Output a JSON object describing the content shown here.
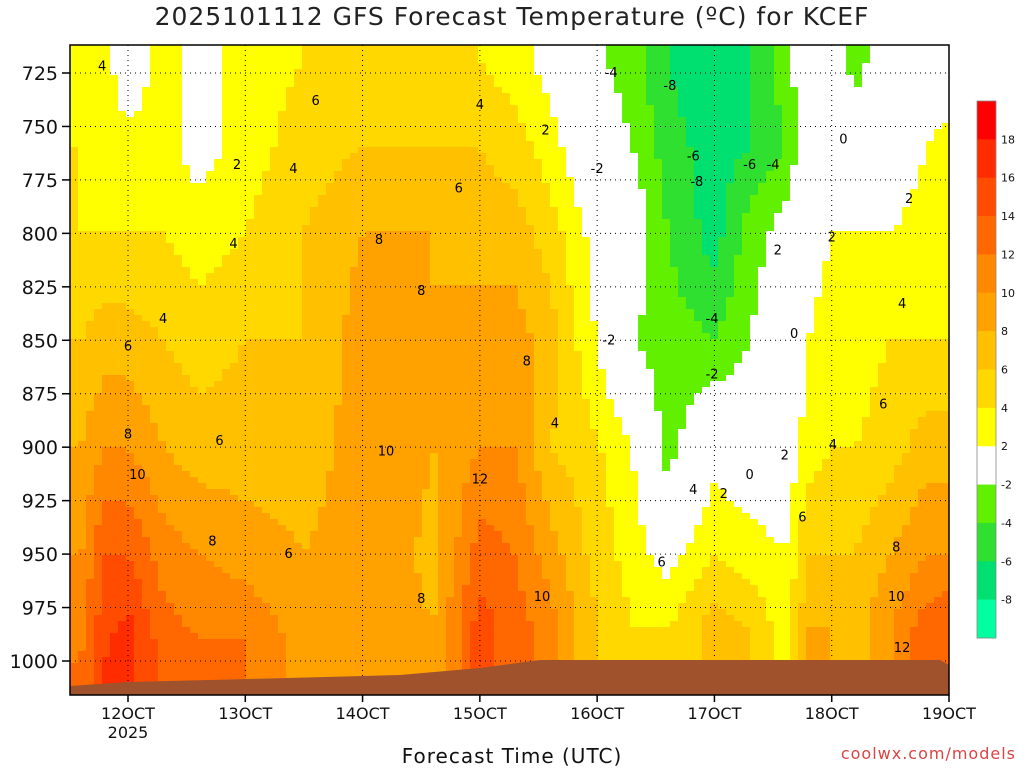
{
  "title": "2025101112 GFS Forecast Temperature (ºC) for KCEF",
  "xlabel": "Forecast Time (UTC)",
  "credit": "coolwx.com/models",
  "chart_data": {
    "type": "heatmap",
    "title": "2025101112 GFS Forecast Temperature (ºC) for KCEF",
    "xlabel": "Forecast Time (UTC)",
    "ylabel": "",
    "x_ticks": [
      "12OCT",
      "13OCT",
      "14OCT",
      "15OCT",
      "16OCT",
      "17OCT",
      "18OCT",
      "19OCT"
    ],
    "x_tick_values": [
      12,
      13,
      14,
      15,
      16,
      17,
      18,
      19
    ],
    "x_sub_label": "2025",
    "xlim": [
      11.6,
      19.0
    ],
    "y_ticks": [
      725,
      750,
      775,
      800,
      825,
      850,
      875,
      900,
      925,
      950,
      975,
      1000
    ],
    "ylim": [
      1015,
      711
    ],
    "y_inverted": true,
    "grid": true,
    "colorbar": {
      "levels": [
        -8,
        -6,
        -4,
        -2,
        2,
        4,
        6,
        8,
        10,
        12,
        14,
        16,
        18
      ],
      "tick_labels": [
        "18",
        "16",
        "14",
        "12",
        "10",
        "8",
        "6",
        "4",
        "2",
        "-2",
        "-4",
        "-6",
        "-8"
      ],
      "colors": [
        "#00ffa0",
        "#00e070",
        "#30e030",
        "#60f000",
        "#ffffff",
        "#ffff00",
        "#ffd800",
        "#ffc000",
        "#ffa200",
        "#ff8800",
        "#ff6800",
        "#ff4c00",
        "#ff2c00",
        "#ff0000"
      ]
    },
    "columns": [
      {
        "x": 11.6,
        "t": [
          [
            720,
            3
          ],
          [
            760,
            4
          ],
          [
            800,
            4
          ],
          [
            850,
            6
          ],
          [
            900,
            8
          ],
          [
            950,
            10
          ],
          [
            1000,
            12
          ]
        ]
      },
      {
        "x": 11.8,
        "t": [
          [
            720,
            3
          ],
          [
            760,
            3
          ],
          [
            800,
            4
          ],
          [
            850,
            7
          ],
          [
            900,
            10
          ],
          [
            950,
            14
          ],
          [
            1000,
            16
          ]
        ]
      },
      {
        "x": 12.0,
        "t": [
          [
            720,
            0
          ],
          [
            760,
            3
          ],
          [
            800,
            4
          ],
          [
            850,
            7
          ],
          [
            900,
            10
          ],
          [
            950,
            14
          ],
          [
            990,
            17
          ]
        ]
      },
      {
        "x": 12.3,
        "t": [
          [
            720,
            3
          ],
          [
            760,
            3
          ],
          [
            800,
            4
          ],
          [
            850,
            6
          ],
          [
            900,
            8
          ],
          [
            950,
            11
          ],
          [
            990,
            13
          ]
        ]
      },
      {
        "x": 12.6,
        "t": [
          [
            720,
            1
          ],
          [
            760,
            1
          ],
          [
            800,
            3
          ],
          [
            850,
            5
          ],
          [
            900,
            7
          ],
          [
            950,
            10
          ],
          [
            990,
            12
          ]
        ]
      },
      {
        "x": 13.0,
        "t": [
          [
            720,
            3
          ],
          [
            760,
            3
          ],
          [
            800,
            4
          ],
          [
            850,
            6
          ],
          [
            900,
            7
          ],
          [
            950,
            9
          ],
          [
            990,
            12
          ]
        ]
      },
      {
        "x": 13.5,
        "t": [
          [
            720,
            4
          ],
          [
            760,
            5
          ],
          [
            800,
            6
          ],
          [
            850,
            6
          ],
          [
            900,
            7
          ],
          [
            950,
            8
          ],
          [
            985,
            9
          ]
        ]
      },
      {
        "x": 14.0,
        "t": [
          [
            720,
            5
          ],
          [
            760,
            6
          ],
          [
            800,
            8
          ],
          [
            850,
            9
          ],
          [
            900,
            9
          ],
          [
            950,
            9
          ],
          [
            985,
            9
          ]
        ]
      },
      {
        "x": 14.3,
        "t": [
          [
            720,
            5
          ],
          [
            760,
            6
          ],
          [
            800,
            8
          ],
          [
            850,
            10
          ],
          [
            900,
            10
          ],
          [
            950,
            9
          ],
          [
            985,
            9
          ]
        ]
      },
      {
        "x": 14.6,
        "t": [
          [
            720,
            5
          ],
          [
            760,
            6
          ],
          [
            800,
            8
          ],
          [
            850,
            8
          ],
          [
            900,
            8
          ],
          [
            950,
            7
          ],
          [
            985,
            8
          ]
        ]
      },
      {
        "x": 15.0,
        "t": [
          [
            720,
            4
          ],
          [
            760,
            6
          ],
          [
            800,
            7
          ],
          [
            850,
            9
          ],
          [
            900,
            10
          ],
          [
            950,
            13
          ],
          [
            985,
            15
          ]
        ]
      },
      {
        "x": 15.3,
        "t": [
          [
            720,
            3
          ],
          [
            760,
            5
          ],
          [
            800,
            7
          ],
          [
            850,
            9
          ],
          [
            900,
            10
          ],
          [
            950,
            12
          ],
          [
            985,
            13
          ]
        ]
      },
      {
        "x": 15.6,
        "t": [
          [
            720,
            1
          ],
          [
            760,
            3
          ],
          [
            800,
            5
          ],
          [
            850,
            7
          ],
          [
            900,
            6
          ],
          [
            950,
            9
          ],
          [
            985,
            11
          ]
        ]
      },
      {
        "x": 15.9,
        "t": [
          [
            720,
            -1
          ],
          [
            760,
            0
          ],
          [
            800,
            2
          ],
          [
            850,
            3
          ],
          [
            900,
            5
          ],
          [
            950,
            6
          ],
          [
            985,
            7
          ]
        ]
      },
      {
        "x": 16.3,
        "t": [
          [
            720,
            -3
          ],
          [
            760,
            -2
          ],
          [
            800,
            0
          ],
          [
            850,
            -2
          ],
          [
            900,
            2
          ],
          [
            950,
            3
          ],
          [
            985,
            4
          ]
        ]
      },
      {
        "x": 16.6,
        "t": [
          [
            720,
            -6
          ],
          [
            760,
            -5
          ],
          [
            800,
            -4
          ],
          [
            850,
            -3
          ],
          [
            900,
            -3
          ],
          [
            950,
            1
          ],
          [
            985,
            4
          ]
        ]
      },
      {
        "x": 17.0,
        "t": [
          [
            720,
            -8
          ],
          [
            760,
            -7
          ],
          [
            800,
            -7
          ],
          [
            850,
            -4
          ],
          [
            900,
            1
          ],
          [
            950,
            4
          ],
          [
            985,
            7
          ]
        ]
      },
      {
        "x": 17.3,
        "t": [
          [
            720,
            -6
          ],
          [
            760,
            -6
          ],
          [
            800,
            -3
          ],
          [
            850,
            -2
          ],
          [
            900,
            0
          ],
          [
            950,
            3
          ],
          [
            985,
            6
          ]
        ]
      },
      {
        "x": 17.6,
        "t": [
          [
            720,
            -3
          ],
          [
            760,
            -4
          ],
          [
            800,
            -1
          ],
          [
            850,
            0
          ],
          [
            900,
            0
          ],
          [
            950,
            2
          ],
          [
            985,
            3
          ]
        ]
      },
      {
        "x": 17.8,
        "t": [
          [
            720,
            0
          ],
          [
            760,
            0
          ],
          [
            800,
            1
          ],
          [
            850,
            2
          ],
          [
            900,
            3
          ],
          [
            950,
            6
          ],
          [
            985,
            8
          ]
        ]
      },
      {
        "x": 18.0,
        "t": [
          [
            720,
            0
          ],
          [
            760,
            0
          ],
          [
            800,
            2
          ],
          [
            850,
            3
          ],
          [
            900,
            4
          ],
          [
            950,
            6
          ],
          [
            985,
            8
          ]
        ]
      },
      {
        "x": 18.2,
        "t": [
          [
            720,
            -3
          ],
          [
            760,
            0
          ],
          [
            800,
            2
          ],
          [
            850,
            3
          ],
          [
            900,
            4
          ],
          [
            950,
            6
          ],
          [
            985,
            7
          ]
        ]
      },
      {
        "x": 18.5,
        "t": [
          [
            720,
            0
          ],
          [
            760,
            0
          ],
          [
            800,
            2
          ],
          [
            850,
            4
          ],
          [
            900,
            5
          ],
          [
            950,
            8
          ],
          [
            985,
            10
          ]
        ]
      },
      {
        "x": 18.8,
        "t": [
          [
            720,
            0
          ],
          [
            760,
            2
          ],
          [
            800,
            3
          ],
          [
            850,
            4
          ],
          [
            900,
            7
          ],
          [
            950,
            10
          ],
          [
            985,
            13
          ]
        ]
      },
      {
        "x": 19.0,
        "t": [
          [
            720,
            0
          ],
          [
            760,
            3
          ],
          [
            800,
            3
          ],
          [
            850,
            4
          ],
          [
            900,
            7
          ],
          [
            950,
            10
          ],
          [
            985,
            14
          ]
        ]
      }
    ],
    "contour_labels": [
      {
        "text": "4",
        "x": 11.78,
        "p": 722
      },
      {
        "text": "2",
        "x": 12.93,
        "p": 768
      },
      {
        "text": "4",
        "x": 12.9,
        "p": 805
      },
      {
        "text": "4",
        "x": 13.41,
        "p": 770
      },
      {
        "text": "4",
        "x": 12.3,
        "p": 840
      },
      {
        "text": "6",
        "x": 12.0,
        "p": 853
      },
      {
        "text": "8",
        "x": 12.0,
        "p": 894
      },
      {
        "text": "10",
        "x": 12.08,
        "p": 913
      },
      {
        "text": "6",
        "x": 12.78,
        "p": 897
      },
      {
        "text": "8",
        "x": 12.72,
        "p": 944
      },
      {
        "text": "6",
        "x": 13.6,
        "p": 738
      },
      {
        "text": "8",
        "x": 14.14,
        "p": 803
      },
      {
        "text": "6",
        "x": 13.37,
        "p": 950
      },
      {
        "text": "8",
        "x": 14.5,
        "p": 827
      },
      {
        "text": "10",
        "x": 14.2,
        "p": 902
      },
      {
        "text": "8",
        "x": 14.5,
        "p": 971
      },
      {
        "text": "4",
        "x": 15.0,
        "p": 740
      },
      {
        "text": "6",
        "x": 14.82,
        "p": 779
      },
      {
        "text": "2",
        "x": 15.56,
        "p": 752
      },
      {
        "text": "12",
        "x": 15.0,
        "p": 915
      },
      {
        "text": "8",
        "x": 15.4,
        "p": 860
      },
      {
        "text": "4",
        "x": 15.64,
        "p": 889
      },
      {
        "text": "10",
        "x": 15.53,
        "p": 970
      },
      {
        "text": "-4",
        "x": 16.12,
        "p": 725
      },
      {
        "text": "-8",
        "x": 16.62,
        "p": 731
      },
      {
        "text": "-2",
        "x": 16.0,
        "p": 770
      },
      {
        "text": "-6",
        "x": 16.82,
        "p": 764
      },
      {
        "text": "-8",
        "x": 16.85,
        "p": 776
      },
      {
        "text": "-6",
        "x": 17.3,
        "p": 768
      },
      {
        "text": "-4",
        "x": 17.5,
        "p": 768
      },
      {
        "text": "-2",
        "x": 16.1,
        "p": 850
      },
      {
        "text": "-4",
        "x": 16.98,
        "p": 840
      },
      {
        "text": "-2",
        "x": 16.98,
        "p": 866
      },
      {
        "text": "2",
        "x": 17.54,
        "p": 808
      },
      {
        "text": "0",
        "x": 18.1,
        "p": 756
      },
      {
        "text": "2",
        "x": 18.0,
        "p": 802
      },
      {
        "text": "0",
        "x": 17.68,
        "p": 847
      },
      {
        "text": "4",
        "x": 18.6,
        "p": 833
      },
      {
        "text": "2",
        "x": 18.66,
        "p": 784
      },
      {
        "text": "4",
        "x": 16.82,
        "p": 920
      },
      {
        "text": "2",
        "x": 17.08,
        "p": 922
      },
      {
        "text": "0",
        "x": 17.3,
        "p": 913
      },
      {
        "text": "2",
        "x": 17.6,
        "p": 904
      },
      {
        "text": "4",
        "x": 18.01,
        "p": 899
      },
      {
        "text": "6",
        "x": 18.44,
        "p": 880
      },
      {
        "text": "6",
        "x": 16.55,
        "p": 954
      },
      {
        "text": "6",
        "x": 17.75,
        "p": 933
      },
      {
        "text": "8",
        "x": 18.55,
        "p": 947
      },
      {
        "text": "10",
        "x": 18.55,
        "p": 970
      },
      {
        "text": "12",
        "x": 18.6,
        "p": 994
      }
    ]
  }
}
